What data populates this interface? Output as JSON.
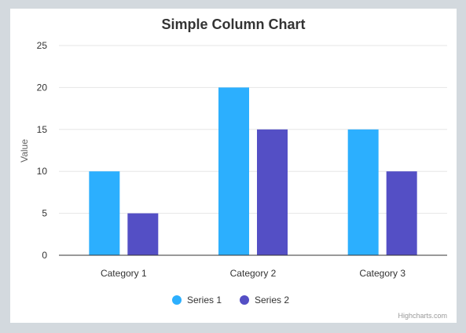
{
  "chart_data": {
    "type": "bar",
    "title": "Simple Column Chart",
    "xlabel": "",
    "ylabel": "Value",
    "categories": [
      "Category 1",
      "Category 2",
      "Category 3"
    ],
    "series": [
      {
        "name": "Series 1",
        "values": [
          10,
          20,
          15
        ],
        "color": "#2caffe"
      },
      {
        "name": "Series 2",
        "values": [
          5,
          15,
          10
        ],
        "color": "#544fc5"
      }
    ],
    "ylim": [
      0,
      25
    ],
    "yticks": [
      0,
      5,
      10,
      15,
      20,
      25
    ],
    "grid": true,
    "legend_position": "bottom-center"
  },
  "credits": "Highcharts.com"
}
